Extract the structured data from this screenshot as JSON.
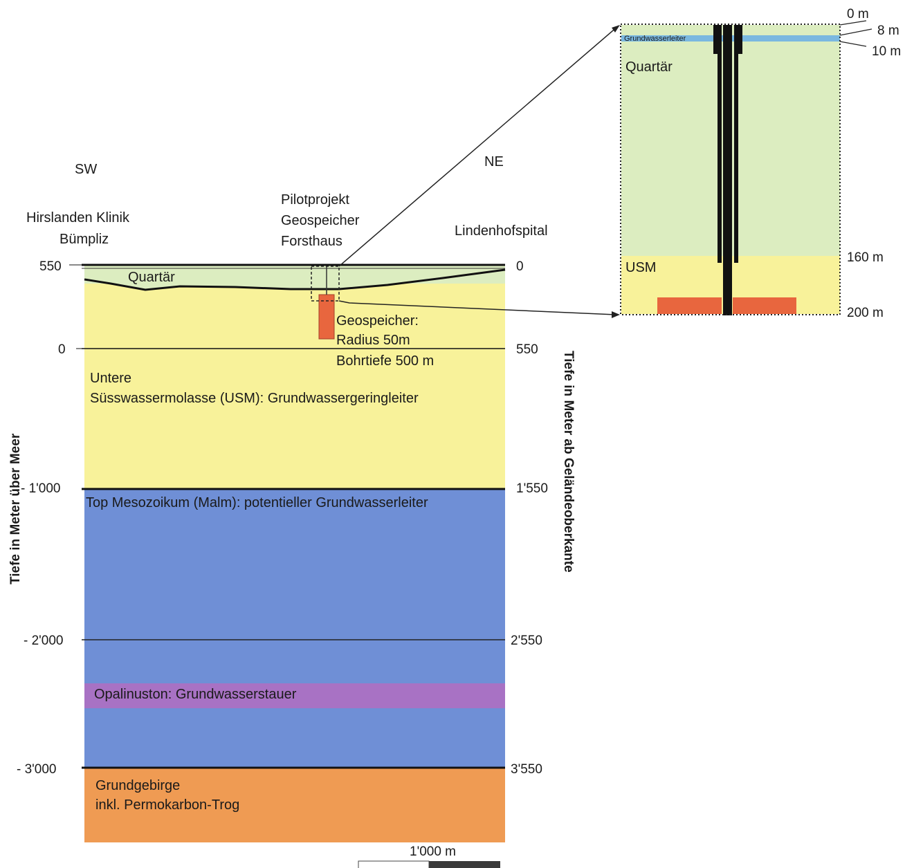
{
  "directions": {
    "left": "SW",
    "right": "NE"
  },
  "sites": {
    "left_line1": "Hirslanden Klinik",
    "left_line2": "Bümpliz",
    "center_line1": "Pilotprojekt",
    "center_line2": "Geospeicher",
    "center_line3": "Forsthaus",
    "right": "Lindenhofspital"
  },
  "axes": {
    "left_title": "Tiefe in Meter über Meer",
    "right_title": "Tiefe in Meter ab Geländeoberkante",
    "left_ticks": [
      "550",
      "0",
      "- 1'000",
      "- 2'000",
      "- 3'000"
    ],
    "right_ticks": [
      "0",
      "550",
      "1'550",
      "2'550",
      "3'550"
    ]
  },
  "layers": {
    "quartaer": "Quartär",
    "usm_line1": "Untere",
    "usm_line2": "Süsswassermolasse (USM): Grundwassergeringleiter",
    "malm": "Top Mesozoikum (Malm): potentieller Grundwasserleiter",
    "opalinus": "Opalinuston: Grundwasserstauer",
    "grund_line1": "Grundgebirge",
    "grund_line2": "inkl. Permokarbon-Trog"
  },
  "geospeicher": {
    "line1": "Geospeicher:",
    "line2": "Radius 50m",
    "line3": "Bohrtiefe 500 m"
  },
  "inset": {
    "aquifer": "Grundwasserleiter",
    "quartaer": "Quartär",
    "usm": "USM",
    "depths": [
      "0 m",
      "8 m",
      "10 m",
      "160 m",
      "200 m"
    ]
  },
  "scale": {
    "label": "1'000 m"
  },
  "colors": {
    "quartaer": "#dcedc0",
    "usm": "#f8f29a",
    "malm": "#6f8fd6",
    "opalinus": "#a872c4",
    "grundgebirge": "#ef9b53",
    "geospeicher": "#e8663e",
    "aquifer": "#7ab8e0"
  }
}
